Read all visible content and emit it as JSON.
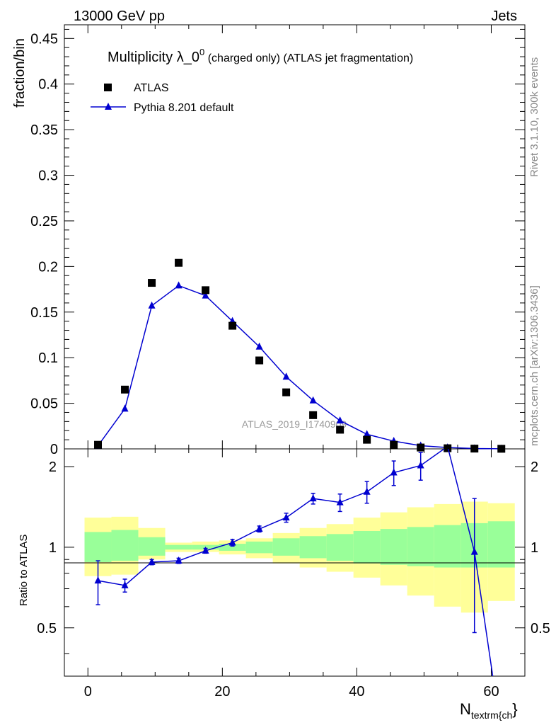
{
  "header": {
    "left": "13000 GeV pp",
    "right": "Jets"
  },
  "side_labels": {
    "rivet": "Rivet 3.1.10,  300k events",
    "mcplots": "mcplots.cern.ch [arXiv:1306.3436]"
  },
  "watermark": "ATLAS_2019_I1740909",
  "title": {
    "main": "Multiplicity λ_0",
    "sup": "0",
    "sub": " (charged only) (ATLAS jet fragmentation)"
  },
  "legend": {
    "atlas": "ATLAS",
    "pythia": "Pythia 8.201 default"
  },
  "axes": {
    "ylabel_main": "fraction/bin",
    "ylabel_ratio": "Ratio to ATLAS",
    "xlabel_main": "N",
    "xlabel_sub": "textrm{ch"
  },
  "colors": {
    "mc": "#0000d0",
    "data": "#000000",
    "band_inner": "#99ff99",
    "band_outer": "#ffff99"
  },
  "chart_data": {
    "type": "scatter",
    "x_range": [
      -3.5,
      65
    ],
    "main_ylim": [
      0,
      0.465
    ],
    "ratio_ylim": [
      0.33,
      2.33
    ],
    "main_yticks": [
      {
        "v": 0,
        "label": "0"
      },
      {
        "v": 0.05,
        "label": "0.05"
      },
      {
        "v": 0.1,
        "label": "0.1"
      },
      {
        "v": 0.15,
        "label": "0.15"
      },
      {
        "v": 0.2,
        "label": "0.2"
      },
      {
        "v": 0.25,
        "label": "0.25"
      },
      {
        "v": 0.3,
        "label": "0.3"
      },
      {
        "v": 0.35,
        "label": "0.35"
      },
      {
        "v": 0.4,
        "label": "0.4"
      },
      {
        "v": 0.45,
        "label": "0.45"
      }
    ],
    "ratio_yticks": [
      {
        "v": 0.5,
        "label": "0.5"
      },
      {
        "v": 1,
        "label": "1"
      },
      {
        "v": 2,
        "label": "2"
      }
    ],
    "xticks": [
      {
        "v": 0,
        "label": "0"
      },
      {
        "v": 20,
        "label": "20"
      },
      {
        "v": 40,
        "label": "40"
      },
      {
        "v": 60,
        "label": "60"
      }
    ],
    "bins": [
      [
        -0.5,
        3.5
      ],
      [
        3.5,
        7.5
      ],
      [
        7.5,
        11.5
      ],
      [
        11.5,
        15.5
      ],
      [
        15.5,
        19.5
      ],
      [
        19.5,
        23.5
      ],
      [
        23.5,
        27.5
      ],
      [
        27.5,
        31.5
      ],
      [
        31.5,
        35.5
      ],
      [
        35.5,
        39.5
      ],
      [
        39.5,
        43.5
      ],
      [
        43.5,
        47.5
      ],
      [
        47.5,
        51.5
      ],
      [
        51.5,
        55.5
      ],
      [
        55.5,
        59.5
      ],
      [
        59.5,
        63.5
      ]
    ],
    "x": [
      1.5,
      5.5,
      9.5,
      13.5,
      17.5,
      21.5,
      25.5,
      29.5,
      33.5,
      37.5,
      41.5,
      45.5,
      49.5,
      53.5,
      57.5,
      61.5
    ],
    "series": [
      {
        "name": "ATLAS",
        "values": [
          0.0045,
          0.065,
          0.182,
          0.204,
          0.174,
          0.135,
          0.097,
          0.062,
          0.037,
          0.021,
          0.01,
          0.0045,
          0.0015,
          0.0007,
          0.0003,
          0.0001
        ]
      },
      {
        "name": "Pythia 8.201 default",
        "values": [
          0.0034,
          0.044,
          0.157,
          0.179,
          0.168,
          0.14,
          0.112,
          0.079,
          0.053,
          0.031,
          0.016,
          0.0085,
          0.0035,
          0.0015,
          0.0004,
          0.0001
        ],
        "errors": [
          0.0003,
          0.001,
          0.003,
          0.003,
          0.003,
          0.003,
          0.002,
          0.002,
          0.002,
          0.001,
          0.001,
          0.0005,
          0.0003,
          0.0002,
          0.0001,
          0.0001
        ]
      }
    ],
    "ratio": {
      "values": [
        0.75,
        0.72,
        0.88,
        0.89,
        0.97,
        1.04,
        1.17,
        1.29,
        1.52,
        1.47,
        1.61,
        1.9,
        2.02,
        2.38,
        0.96,
        0.2
      ],
      "err_lo": [
        0.14,
        0.04,
        0.02,
        0.02,
        0.02,
        0.03,
        0.03,
        0.05,
        0.07,
        0.11,
        0.15,
        0.2,
        0.24,
        0.0,
        0.48,
        0.0
      ],
      "err_hi": [
        0.14,
        0.04,
        0.02,
        0.02,
        0.02,
        0.03,
        0.03,
        0.05,
        0.07,
        0.11,
        0.15,
        0.2,
        0.24,
        0.0,
        0.56,
        0.0
      ],
      "band_inner": [
        [
          0.88,
          1.14
        ],
        [
          0.89,
          1.16
        ],
        [
          0.93,
          1.09
        ],
        [
          0.98,
          1.02
        ],
        [
          0.98,
          1.02
        ],
        [
          0.97,
          1.03
        ],
        [
          0.95,
          1.05
        ],
        [
          0.93,
          1.08
        ],
        [
          0.91,
          1.1
        ],
        [
          0.89,
          1.12
        ],
        [
          0.87,
          1.15
        ],
        [
          0.86,
          1.17
        ],
        [
          0.85,
          1.19
        ],
        [
          0.84,
          1.21
        ],
        [
          0.84,
          1.23
        ],
        [
          0.84,
          1.25
        ]
      ],
      "band_outer": [
        [
          0.78,
          1.29
        ],
        [
          0.79,
          1.3
        ],
        [
          0.9,
          1.18
        ],
        [
          0.96,
          1.04
        ],
        [
          0.96,
          1.05
        ],
        [
          0.94,
          1.06
        ],
        [
          0.91,
          1.08
        ],
        [
          0.87,
          1.13
        ],
        [
          0.84,
          1.18
        ],
        [
          0.81,
          1.22
        ],
        [
          0.77,
          1.29
        ],
        [
          0.72,
          1.35
        ],
        [
          0.66,
          1.41
        ],
        [
          0.6,
          1.45
        ],
        [
          0.57,
          1.48
        ],
        [
          0.63,
          1.46
        ]
      ]
    }
  }
}
